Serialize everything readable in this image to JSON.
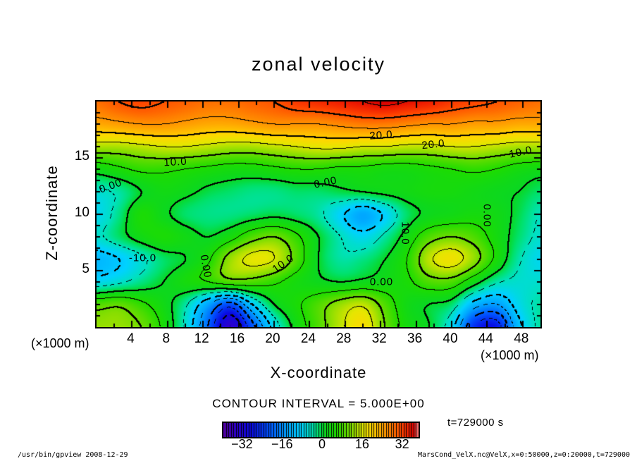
{
  "title": "zonal velocity",
  "axes": {
    "x": {
      "label": "X-coordinate",
      "unit": "(×1000 m)",
      "ticks": [
        4,
        8,
        12,
        16,
        20,
        24,
        28,
        32,
        36,
        40,
        44,
        48
      ],
      "range": [
        0,
        50
      ]
    },
    "y": {
      "label": "Z-coordinate",
      "unit": "(×1000 m)",
      "ticks": [
        5,
        10,
        15
      ],
      "range": [
        0,
        20
      ]
    }
  },
  "contour_note": "CONTOUR INTERVAL = 5.000E+00",
  "time_note": "t=729000 s",
  "footer": {
    "left": "/usr/bin/gpview  2008-12-29",
    "right": "MarsCond_VelX.nc@VelX,x=0:50000,z=0:20000,t=729000"
  },
  "colorbar": {
    "ticks": [
      -32,
      -16,
      0,
      16,
      32
    ],
    "vmin": -40,
    "vmax": 38,
    "cells": 78
  },
  "chart_data": {
    "type": "contour",
    "title": "zonal velocity",
    "xlabel": "X-coordinate (×1000 m)",
    "ylabel": "Z-coordinate (×1000 m)",
    "xlim": [
      0,
      50
    ],
    "ylim": [
      0,
      20
    ],
    "contour_interval": 5,
    "negative_contours": "dashed",
    "x": [
      0,
      2.5,
      5,
      7.5,
      10,
      12.5,
      15,
      17.5,
      20,
      22.5,
      25,
      27.5,
      30,
      32.5,
      35,
      37.5,
      40,
      42.5,
      45,
      47.5,
      50
    ],
    "z": [
      0,
      2,
      4,
      6,
      8,
      10,
      12,
      14,
      16,
      18,
      20
    ],
    "values": [
      [
        12,
        12,
        10,
        4,
        -6,
        -20,
        -35,
        -22,
        -8,
        2,
        8,
        14,
        18,
        10,
        3,
        0,
        -8,
        -25,
        -28,
        -12,
        -4
      ],
      [
        8,
        9,
        6,
        2,
        -4,
        -14,
        -22,
        -10,
        0,
        4,
        8,
        12,
        14,
        8,
        2,
        0,
        -2,
        -12,
        -15,
        -8,
        -4
      ],
      [
        -8,
        -6,
        -3,
        0,
        3,
        5,
        8,
        8,
        6,
        3,
        1,
        0,
        1,
        2,
        4,
        8,
        8,
        2,
        -4,
        -6,
        -6
      ],
      [
        -12,
        -10,
        -6,
        -2,
        0,
        4,
        12,
        16,
        15,
        8,
        0,
        -4,
        -3,
        0,
        5,
        14,
        17,
        12,
        4,
        -4,
        -8
      ],
      [
        -6,
        -2,
        2,
        4,
        2,
        0,
        3,
        8,
        10,
        6,
        0,
        -5,
        -8,
        -4,
        2,
        8,
        10,
        8,
        3,
        -2,
        -6
      ],
      [
        -8,
        -3,
        4,
        1,
        -2,
        -3,
        -3,
        -2,
        -1,
        -2,
        -4,
        -9,
        -14,
        -9,
        -2,
        1,
        2,
        3,
        2,
        -1,
        -5
      ],
      [
        -6,
        -4,
        0,
        2,
        1,
        -1,
        -2,
        -3,
        -3,
        -2,
        -2,
        -1,
        0,
        1,
        2,
        3,
        3,
        2,
        1,
        0,
        -2
      ],
      [
        2,
        4,
        6,
        6,
        5,
        4,
        3,
        3,
        4,
        5,
        5,
        4,
        4,
        3,
        3,
        4,
        5,
        6,
        5,
        3,
        2
      ],
      [
        13,
        13,
        14,
        15,
        15,
        14,
        13,
        13,
        14,
        15,
        16,
        16,
        15,
        15,
        14,
        14,
        15,
        15,
        14,
        13,
        13
      ],
      [
        23,
        24,
        25,
        25,
        24,
        23,
        23,
        24,
        25,
        25,
        25,
        26,
        27,
        27,
        26,
        25,
        25,
        24,
        24,
        23,
        23
      ],
      [
        28,
        30,
        31,
        30,
        29,
        28,
        28,
        29,
        30,
        32,
        33,
        34,
        35,
        36,
        35,
        34,
        32,
        31,
        30,
        29,
        28
      ]
    ],
    "contour_labels": [
      {
        "text": "20.0",
        "x": 32.1,
        "z": 17.0,
        "rot": -4
      },
      {
        "text": "20.0",
        "x": 37.9,
        "z": 16.2,
        "rot": -6
      },
      {
        "text": "10.0",
        "x": 47.8,
        "z": 15.5,
        "rot": -12
      },
      {
        "text": "10.0",
        "x": 8.9,
        "z": 14.6,
        "rot": -3
      },
      {
        "text": "0.00",
        "x": 1.6,
        "z": 12.5,
        "rot": -20
      },
      {
        "text": "0.00",
        "x": 25.8,
        "z": 12.8,
        "rot": -12
      },
      {
        "text": "-10.0",
        "x": 5.2,
        "z": 6.1,
        "rot": 0
      },
      {
        "text": "10.0",
        "x": 34.8,
        "z": 8.3,
        "rot": 90
      },
      {
        "text": "0.00",
        "x": 44.0,
        "z": 9.9,
        "rot": 90
      },
      {
        "text": "0.00",
        "x": 32.1,
        "z": 4.0,
        "rot": 0
      },
      {
        "text": "10.0",
        "x": 21.0,
        "z": 5.6,
        "rot": -35
      },
      {
        "text": "0.00",
        "x": 12.3,
        "z": 5.4,
        "rot": 80
      }
    ],
    "colormap": [
      [
        -40,
        "#50009b"
      ],
      [
        -35,
        "#2d00cd"
      ],
      [
        -29,
        "#0a0ae1"
      ],
      [
        -22,
        "#0050ff"
      ],
      [
        -15,
        "#00a0ff"
      ],
      [
        -9,
        "#00d2ff"
      ],
      [
        -5,
        "#00e1be"
      ],
      [
        -2,
        "#00e169"
      ],
      [
        0,
        "#0ad723"
      ],
      [
        5,
        "#1edc00"
      ],
      [
        10,
        "#6edc00"
      ],
      [
        13,
        "#aae100"
      ],
      [
        16,
        "#e6e600"
      ],
      [
        19,
        "#ffd700"
      ],
      [
        23,
        "#ffaa00"
      ],
      [
        27,
        "#ff7d00"
      ],
      [
        31,
        "#ff4600"
      ],
      [
        34,
        "#ef1e00"
      ],
      [
        36,
        "#d70000"
      ],
      [
        38,
        "#ff8c8c"
      ],
      [
        40,
        "#ffbebe"
      ]
    ]
  }
}
